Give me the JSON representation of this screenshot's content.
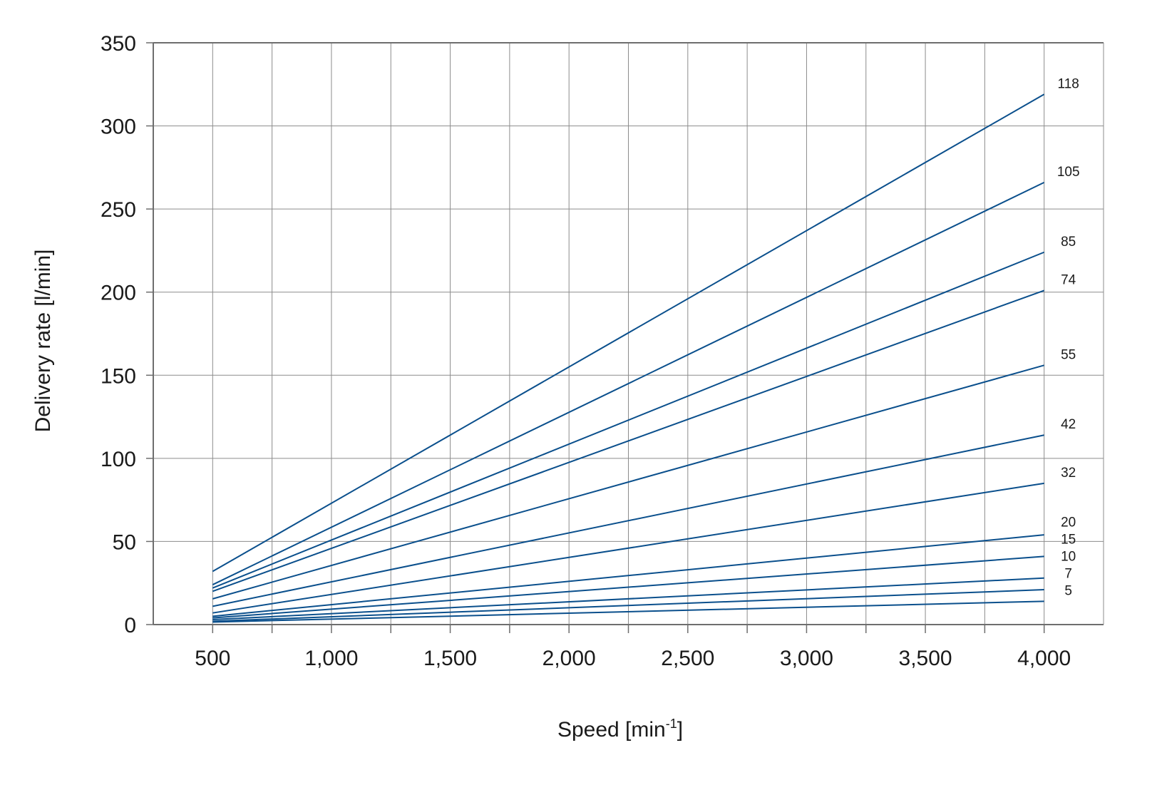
{
  "chart_data": {
    "type": "line",
    "xlabel": "Speed [min",
    "xlabel_sup": "-1",
    "xlabel_suffix": "]",
    "ylabel": "Delivery rate [l/min]",
    "xlim": [
      250,
      4250
    ],
    "ylim": [
      0,
      350
    ],
    "x_ticks": [
      500,
      1000,
      1500,
      2000,
      2500,
      3000,
      3500,
      4000
    ],
    "x_tick_labels": [
      "500",
      "1,000",
      "1,500",
      "2,000",
      "2,500",
      "3,000",
      "3,500",
      "4,000"
    ],
    "x_grid": [
      500,
      750,
      1000,
      1250,
      1500,
      1750,
      2000,
      2250,
      2500,
      2750,
      3000,
      3250,
      3500,
      3750,
      4000
    ],
    "y_ticks": [
      0,
      50,
      100,
      150,
      200,
      250,
      300,
      350
    ],
    "y_tick_labels": [
      "0",
      "50",
      "100",
      "150",
      "200",
      "250",
      "300",
      "350"
    ],
    "grid": true,
    "line_color": "#0a4f8c",
    "grid_color": "#8c8c8c",
    "series": [
      {
        "name": "118",
        "x": [
          500,
          4000
        ],
        "y": [
          32,
          319
        ]
      },
      {
        "name": "105",
        "x": [
          500,
          4000
        ],
        "y": [
          24,
          266
        ]
      },
      {
        "name": "85",
        "x": [
          500,
          4000
        ],
        "y": [
          22,
          224
        ]
      },
      {
        "name": "74",
        "x": [
          500,
          4000
        ],
        "y": [
          20,
          201
        ]
      },
      {
        "name": "55",
        "x": [
          500,
          4000
        ],
        "y": [
          15.5,
          156
        ]
      },
      {
        "name": "42",
        "x": [
          500,
          4000
        ],
        "y": [
          11,
          114
        ]
      },
      {
        "name": "32",
        "x": [
          500,
          4000
        ],
        "y": [
          7,
          85
        ]
      },
      {
        "name": "20",
        "x": [
          500,
          4000
        ],
        "y": [
          5,
          54
        ]
      },
      {
        "name": "15",
        "x": [
          500,
          4000
        ],
        "y": [
          4,
          41
        ]
      },
      {
        "name": "10",
        "x": [
          500,
          4000
        ],
        "y": [
          3,
          28
        ]
      },
      {
        "name": "7",
        "x": [
          500,
          4000
        ],
        "y": [
          2,
          21
        ]
      },
      {
        "name": "5",
        "x": [
          500,
          4000
        ],
        "y": [
          1.5,
          14
        ]
      }
    ]
  }
}
